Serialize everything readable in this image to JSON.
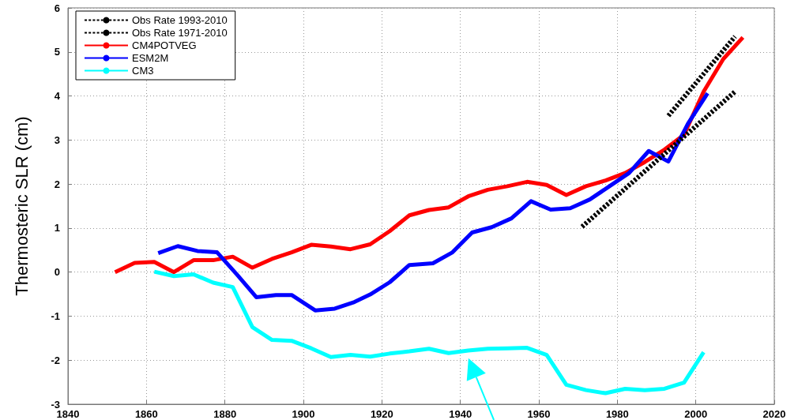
{
  "chart_data": {
    "type": "line",
    "ylabel": "Thermosteric SLR (cm)",
    "xlim": [
      1840,
      2020
    ],
    "xticks": [
      1840,
      1860,
      1880,
      1900,
      1920,
      1940,
      1960,
      1980,
      2000,
      2020
    ],
    "ylim": [
      -3,
      6
    ],
    "yticks": [
      -3,
      -2,
      -1,
      0,
      1,
      2,
      3,
      4,
      5,
      6
    ],
    "grid": true,
    "legend": "top left",
    "marker": "none",
    "series": [
      {
        "name": "Obs Rate 1993-2010",
        "color": "#000000",
        "line_style": "dashed",
        "x": [
          1993,
          2010
        ],
        "values": [
          3.55,
          5.35
        ]
      },
      {
        "name": "Obs Rate 1971-2010",
        "color": "#000000",
        "line_style": "dashed",
        "x": [
          1971,
          2010
        ],
        "values": [
          1.03,
          4.1
        ]
      },
      {
        "name": "CM4POTVEG",
        "color": "#ff0000",
        "line_style": "solid",
        "x": [
          1852,
          1857,
          1862,
          1867,
          1872,
          1877,
          1882,
          1887,
          1892,
          1897,
          1902,
          1907,
          1912,
          1917,
          1922,
          1927,
          1932,
          1937,
          1942,
          1947,
          1952,
          1957,
          1962,
          1967,
          1972,
          1977,
          1982,
          1987,
          1992,
          1997,
          2002,
          2007,
          2012
        ],
        "values": [
          0,
          0.21,
          0.23,
          0,
          0.27,
          0.27,
          0.35,
          0.1,
          0.3,
          0.45,
          0.62,
          0.58,
          0.52,
          0.63,
          0.93,
          1.29,
          1.41,
          1.47,
          1.72,
          1.87,
          1.95,
          2.05,
          1.98,
          1.75,
          1.95,
          2.08,
          2.25,
          2.5,
          2.78,
          3.12,
          4.1,
          4.84,
          5.33
        ]
      },
      {
        "name": "ESM2M",
        "color": "#0000ff",
        "line_style": "solid",
        "x": [
          1863,
          1868,
          1873,
          1878,
          1883,
          1888,
          1893,
          1897,
          1903,
          1908,
          1913,
          1917,
          1922,
          1927,
          1933,
          1938,
          1943,
          1948,
          1953,
          1958,
          1963,
          1968,
          1973,
          1978,
          1983,
          1988,
          1993,
          1998,
          2003
        ],
        "values": [
          0.43,
          0.59,
          0.48,
          0.45,
          -0.05,
          -0.57,
          -0.52,
          -0.52,
          -0.87,
          -0.83,
          -0.68,
          -0.51,
          -0.23,
          0.16,
          0.2,
          0.45,
          0.9,
          1.02,
          1.22,
          1.61,
          1.42,
          1.45,
          1.65,
          1.95,
          2.25,
          2.75,
          2.51,
          3.37,
          4.06
        ]
      },
      {
        "name": "CM3",
        "color": "#00ffff",
        "line_style": "solid",
        "x": [
          1862,
          1867,
          1872,
          1877,
          1882,
          1887,
          1892,
          1897,
          1902,
          1907,
          1912,
          1917,
          1922,
          1927,
          1932,
          1937,
          1942,
          1947,
          1952,
          1957,
          1962,
          1967,
          1972,
          1977,
          1982,
          1987,
          1992,
          1997,
          2002
        ],
        "values": [
          0.01,
          -0.09,
          -0.05,
          -0.24,
          -0.34,
          -1.25,
          -1.54,
          -1.56,
          -1.73,
          -1.93,
          -1.88,
          -1.92,
          -1.85,
          -1.8,
          -1.74,
          -1.84,
          -1.78,
          -1.74,
          -1.73,
          -1.72,
          -1.88,
          -2.56,
          -2.68,
          -2.75,
          -2.65,
          -2.68,
          -2.65,
          -2.51,
          -1.82
        ]
      }
    ]
  }
}
